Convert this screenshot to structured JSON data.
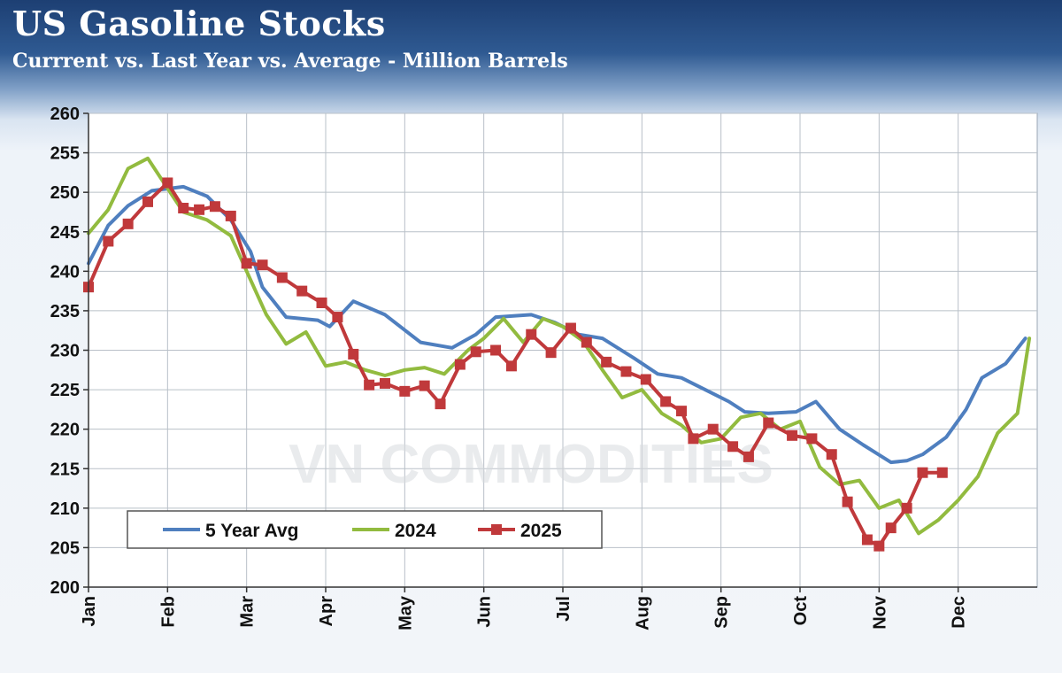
{
  "header": {
    "title": "US Gasoline Stocks",
    "subtitle": "Currrent vs. Last Year vs. Average - Million Barrels"
  },
  "watermark": "VN COMMODITIES",
  "colors": {
    "avg": "#4f7fbf",
    "y2024": "#92bb3f",
    "y2025": "#c0393b"
  },
  "chart_data": {
    "type": "line",
    "title": "US Gasoline Stocks",
    "subtitle": "Currrent vs. Last Year vs. Average - Million Barrels",
    "xlabel": "",
    "ylabel": "",
    "ylim": [
      200,
      260
    ],
    "y_ticks": [
      200,
      205,
      210,
      215,
      220,
      225,
      230,
      235,
      240,
      245,
      250,
      255,
      260
    ],
    "x_tick_labels": [
      "Jan",
      "Feb",
      "Mar",
      "Apr",
      "May",
      "Jun",
      "Jul",
      "Aug",
      "Sep",
      "Oct",
      "Nov",
      "Dec"
    ],
    "x_unit": "month (1 = Jan, fractional = position within year)",
    "xlim": [
      1,
      13
    ],
    "grid": true,
    "legend_position": "bottom-left",
    "series": [
      {
        "name": "5 Year Avg",
        "color_key": "avg",
        "markers": false,
        "x": [
          1.0,
          1.25,
          1.5,
          1.8,
          2.2,
          2.5,
          2.8,
          3.05,
          3.2,
          3.5,
          3.9,
          4.05,
          4.35,
          4.75,
          5.2,
          5.6,
          5.9,
          6.15,
          6.6,
          6.9,
          7.2,
          7.5,
          7.9,
          8.2,
          8.5,
          8.8,
          9.1,
          9.3,
          9.6,
          9.95,
          10.2,
          10.5,
          10.8,
          11.15,
          11.35,
          11.55,
          11.85,
          12.1,
          12.3,
          12.6,
          12.85
        ],
        "y": [
          241,
          245.8,
          248.3,
          250.2,
          250.7,
          249.5,
          246.5,
          242.5,
          238.0,
          234.2,
          233.8,
          233.0,
          236.2,
          234.5,
          231.0,
          230.3,
          232.0,
          234.2,
          234.5,
          233.5,
          232.0,
          231.5,
          229.0,
          227.0,
          226.5,
          225.0,
          223.5,
          222.2,
          222.0,
          222.2,
          223.5,
          220.0,
          218.0,
          215.8,
          216.0,
          216.8,
          219.0,
          222.5,
          226.5,
          228.3,
          231.5
        ]
      },
      {
        "name": "2024",
        "color_key": "y2024",
        "markers": false,
        "x": [
          1.0,
          1.25,
          1.5,
          1.75,
          2.0,
          2.2,
          2.5,
          2.8,
          3.0,
          3.25,
          3.5,
          3.75,
          4.0,
          4.25,
          4.5,
          4.75,
          5.0,
          5.25,
          5.5,
          5.8,
          6.0,
          6.25,
          6.5,
          6.75,
          7.0,
          7.25,
          7.5,
          7.75,
          8.0,
          8.25,
          8.5,
          8.75,
          9.0,
          9.25,
          9.5,
          9.75,
          10.0,
          10.25,
          10.5,
          10.75,
          11.0,
          11.25,
          11.5,
          11.75,
          12.0,
          12.25,
          12.5,
          12.75,
          12.9
        ],
        "y": [
          244.8,
          247.8,
          253.0,
          254.3,
          250.5,
          247.5,
          246.5,
          244.5,
          240.0,
          234.5,
          230.8,
          232.3,
          228.0,
          228.5,
          227.5,
          226.8,
          227.5,
          227.8,
          227.0,
          230.0,
          231.5,
          234.0,
          231.0,
          234.0,
          233.0,
          231.2,
          227.5,
          224.0,
          225.0,
          222.0,
          220.5,
          218.3,
          218.8,
          221.5,
          222.0,
          220.0,
          221.0,
          215.2,
          213.0,
          213.5,
          210.0,
          211.0,
          206.8,
          208.5,
          211.0,
          214.0,
          219.5,
          222.0,
          231.5
        ]
      },
      {
        "name": "2025",
        "color_key": "y2025",
        "markers": true,
        "x": [
          1.0,
          1.25,
          1.5,
          1.75,
          2.0,
          2.2,
          2.4,
          2.6,
          2.8,
          3.0,
          3.2,
          3.45,
          3.7,
          3.95,
          4.15,
          4.35,
          4.55,
          4.75,
          5.0,
          5.25,
          5.45,
          5.7,
          5.9,
          6.15,
          6.35,
          6.6,
          6.85,
          7.1,
          7.3,
          7.55,
          7.8,
          8.05,
          8.3,
          8.5,
          8.65,
          8.9,
          9.15,
          9.35,
          9.6,
          9.9,
          10.15,
          10.4,
          10.6,
          10.85,
          11.0,
          11.15,
          11.35,
          11.55,
          11.8
        ],
        "y": [
          238.0,
          243.8,
          246.0,
          248.8,
          251.2,
          248.0,
          247.8,
          248.2,
          247.0,
          241.0,
          240.8,
          239.2,
          237.5,
          236.0,
          234.2,
          229.5,
          225.6,
          225.8,
          224.8,
          225.5,
          223.2,
          228.2,
          229.8,
          230.0,
          228.0,
          232.0,
          229.7,
          232.8,
          231.0,
          228.5,
          227.3,
          226.3,
          223.5,
          222.3,
          218.8,
          220.0,
          217.8,
          216.5,
          220.8,
          219.2,
          218.8,
          216.8,
          210.8,
          206.0,
          205.2,
          207.5,
          210.0,
          214.5,
          214.5
        ]
      }
    ]
  }
}
